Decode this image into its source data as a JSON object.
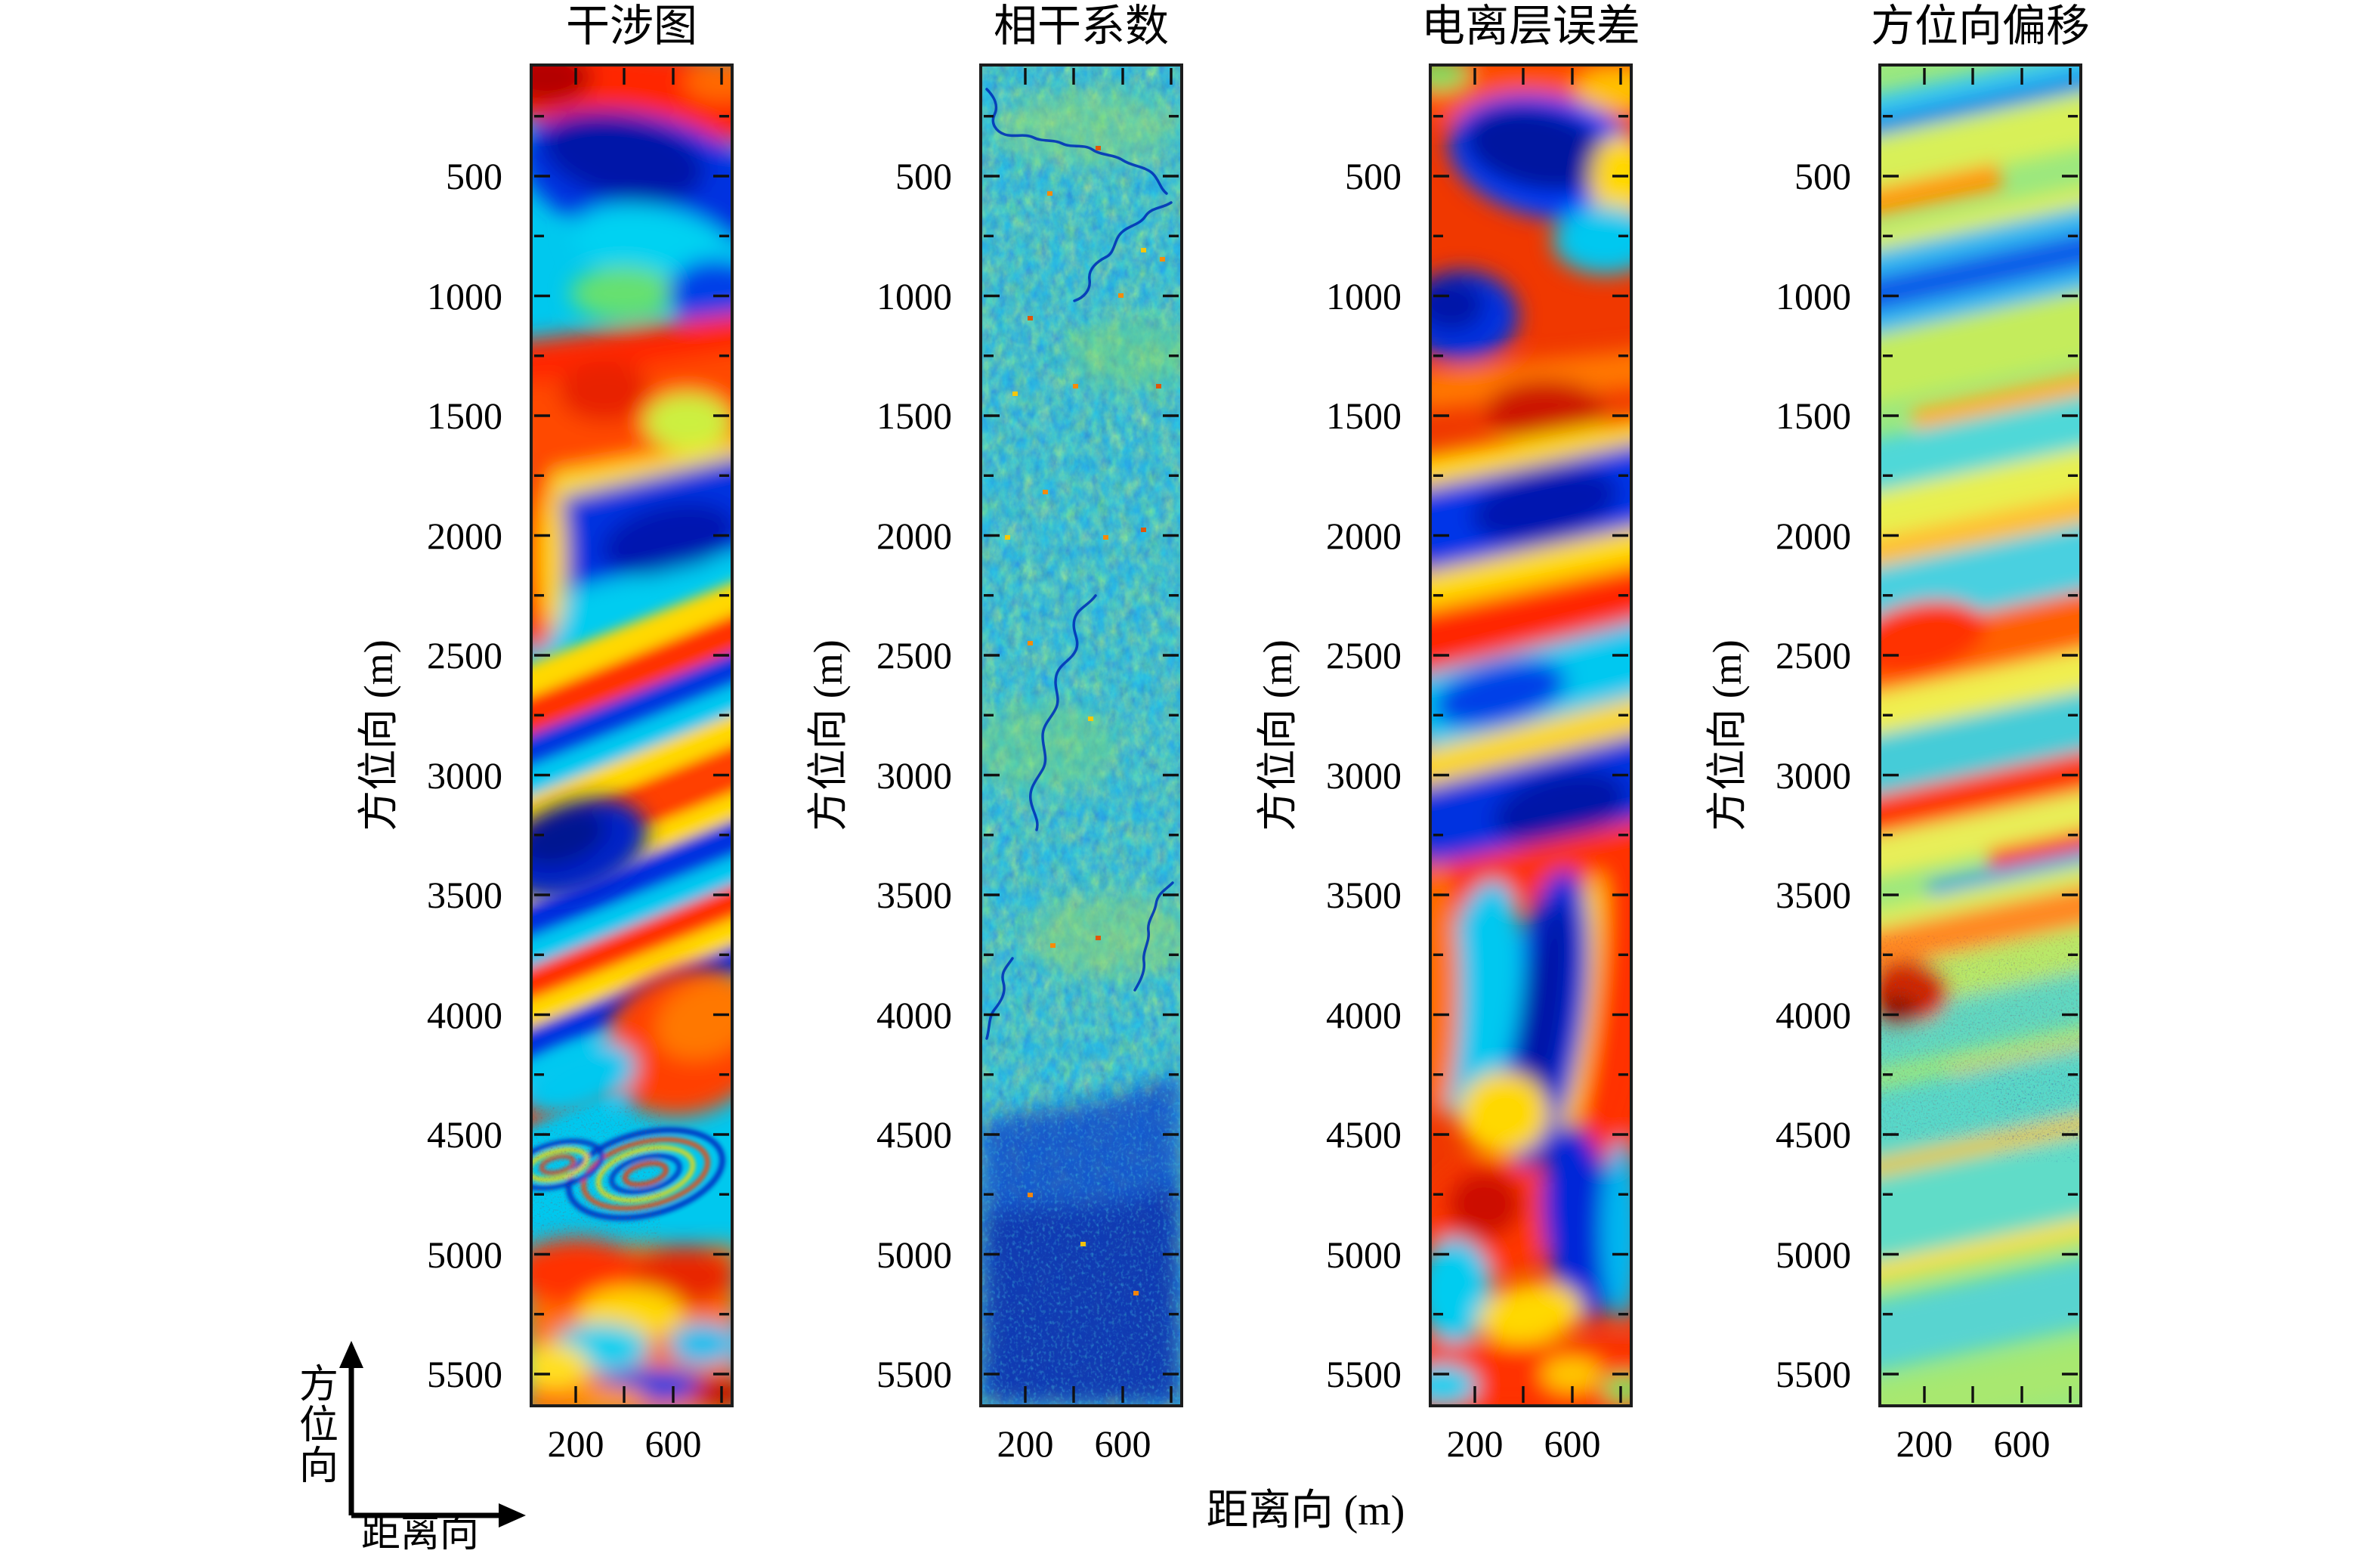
{
  "figure": {
    "background": "#ffffff",
    "shared_xlabel": "距离向 (m)",
    "ylabel": "方位向 (m)",
    "direction_legend": {
      "vertical_label": "方位向",
      "horizontal_label": "距离向"
    }
  },
  "panels": [
    {
      "title": "干涉图"
    },
    {
      "title": "相干系数"
    },
    {
      "title": "电离层误差"
    },
    {
      "title": "方位向偏移"
    }
  ],
  "axes": {
    "y_tick_labels": [
      "500",
      "1000",
      "1500",
      "2000",
      "2500",
      "3000",
      "3500",
      "4000",
      "4500",
      "5000",
      "5500"
    ],
    "x_tick_labels": [
      "200",
      "600"
    ],
    "x_ticks_all": [
      200,
      400,
      600,
      800
    ],
    "y_ticks_minor_step": 250
  },
  "palette": {
    "colormap": "jet",
    "dark_blue": "#0016a8",
    "blue": "#0030e0",
    "cyan": "#00c8f0",
    "green": "#70e070",
    "yellow": "#ffd800",
    "orange": "#ff7800",
    "red": "#ff2800",
    "dark_red": "#b40000",
    "axis_line": "#1c1c1c",
    "text": "#000000"
  },
  "chart_data": [
    {
      "type": "heatmap",
      "title": "干涉图",
      "xlabel": "距离向 (m)",
      "ylabel": "方位向 (m)",
      "x_range": [
        0,
        820
      ],
      "y_range": [
        0,
        5620
      ],
      "x_ticks": [
        200,
        400,
        600,
        800
      ],
      "x_tick_labels_shown": [
        "200",
        "600"
      ],
      "y_ticks": [
        500,
        1000,
        1500,
        2000,
        2500,
        3000,
        3500,
        4000,
        4500,
        5000,
        5500
      ],
      "colormap": "jet",
      "legend": "none",
      "grid": false,
      "description": "Wrapped interferometric phase: broad diagonal jet-colored fringes (red/blue/cyan/yellow) sloping up to the right in the upper 2/3; dense narrow fringes and a turbulent moiré patch near azimuth 4200-4600 m; chaotic orange/red with cyan patches below 4700 m."
    },
    {
      "type": "heatmap",
      "title": "相干系数",
      "xlabel": "距离向 (m)",
      "ylabel": "方位向 (m)",
      "x_range": [
        0,
        820
      ],
      "y_range": [
        0,
        5620
      ],
      "x_ticks": [
        200,
        400,
        600,
        800
      ],
      "x_tick_labels_shown": [
        "200",
        "600"
      ],
      "y_ticks": [
        500,
        1000,
        1500,
        2000,
        2500,
        3000,
        3500,
        4000,
        4500,
        5000,
        5500
      ],
      "colormap": "jet",
      "legend": "none",
      "grid": false,
      "description": "Coherence magnitude: fine cyan/green speckle (moderate coherence) over most of the strip, dark-blue meandering river channels of low coherence in the upper half, sparse orange high-value specks, and a predominantly dark-blue low-coherence zone below azimuth ~3900 m."
    },
    {
      "type": "heatmap",
      "title": "电离层误差",
      "xlabel": "距离向 (m)",
      "ylabel": "方位向 (m)",
      "x_range": [
        0,
        820
      ],
      "y_range": [
        0,
        5620
      ],
      "x_ticks": [
        200,
        400,
        600,
        800
      ],
      "x_tick_labels_shown": [
        "200",
        "600"
      ],
      "y_ticks": [
        500,
        1000,
        1500,
        2000,
        2500,
        3000,
        3500,
        4000,
        4500,
        5000,
        5500
      ],
      "colormap": "jet",
      "legend": "none",
      "grid": false,
      "description": "Estimated ionospheric phase error: smooth large-scale jet fringes; red/orange background with dark-blue blobs at top, alternating diagonal blue/yellow/red bands in the middle, and a near-vertical blue column flanked by red/orange in the lower third."
    },
    {
      "type": "heatmap",
      "title": "方位向偏移",
      "xlabel": "距离向 (m)",
      "ylabel": "方位向 (m)",
      "x_range": [
        0,
        820
      ],
      "y_range": [
        0,
        5620
      ],
      "x_ticks": [
        200,
        400,
        600,
        800
      ],
      "x_tick_labels_shown": [
        "200",
        "600"
      ],
      "y_ticks": [
        500,
        1000,
        1500,
        2000,
        2500,
        3000,
        3500,
        4000,
        4500,
        5000,
        5500
      ],
      "colormap": "jet",
      "legend": "none",
      "grid": false,
      "description": "Azimuth offset map: green-yellow/cyan background crossed by gentle diagonal streaks rising to the right — cyan/blue bands near top, strong orange-red bands near azimuth 2400 m and 3100 m, a noisy speckled zone with a dark-red patch around azimuth 4300-4900 m, mostly cyan/green at bottom."
    }
  ]
}
